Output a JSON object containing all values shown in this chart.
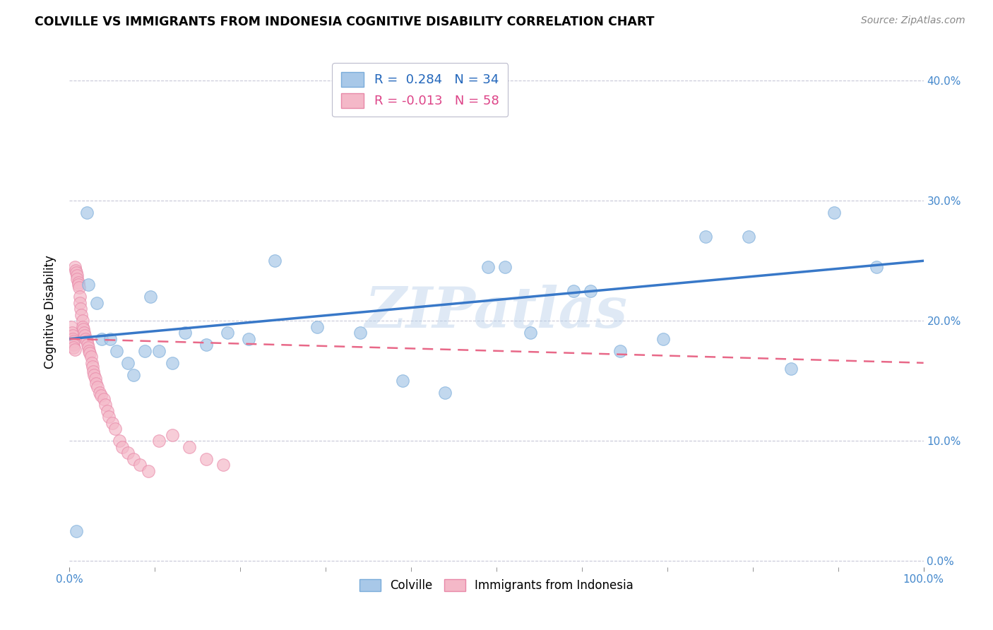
{
  "title": "COLVILLE VS IMMIGRANTS FROM INDONESIA COGNITIVE DISABILITY CORRELATION CHART",
  "source": "Source: ZipAtlas.com",
  "xlabel_label": "Colville",
  "xlabel_label2": "Immigrants from Indonesia",
  "ylabel": "Cognitive Disability",
  "watermark": "ZIPatlas",
  "colville_R": 0.284,
  "colville_N": 34,
  "indonesia_R": -0.013,
  "indonesia_N": 58,
  "colville_color": "#a8c8e8",
  "colville_edge_color": "#7aacda",
  "indonesia_color": "#f4b8c8",
  "indonesia_edge_color": "#e888a8",
  "colville_line_color": "#3878c8",
  "indonesia_line_color": "#e86888",
  "background_color": "#ffffff",
  "grid_color": "#c8c8d8",
  "xlim": [
    0,
    1
  ],
  "ylim": [
    -0.005,
    0.42
  ],
  "xtick_positions": [
    0.0,
    1.0
  ],
  "xtick_labels": [
    "0.0%",
    "100.0%"
  ],
  "ytick_positions": [
    0.0,
    0.1,
    0.2,
    0.3,
    0.4
  ],
  "ytick_labels": [
    "0.0%",
    "10.0%",
    "20.0%",
    "30.0%",
    "40.0%"
  ],
  "colville_x": [
    0.008,
    0.02,
    0.022,
    0.032,
    0.038,
    0.048,
    0.055,
    0.068,
    0.075,
    0.088,
    0.095,
    0.105,
    0.12,
    0.135,
    0.16,
    0.185,
    0.21,
    0.24,
    0.29,
    0.34,
    0.39,
    0.44,
    0.49,
    0.51,
    0.54,
    0.59,
    0.61,
    0.645,
    0.695,
    0.745,
    0.795,
    0.845,
    0.895,
    0.945
  ],
  "colville_y": [
    0.025,
    0.29,
    0.23,
    0.215,
    0.185,
    0.185,
    0.175,
    0.165,
    0.155,
    0.175,
    0.22,
    0.175,
    0.165,
    0.19,
    0.18,
    0.19,
    0.185,
    0.25,
    0.195,
    0.19,
    0.15,
    0.14,
    0.245,
    0.245,
    0.19,
    0.225,
    0.225,
    0.175,
    0.185,
    0.27,
    0.27,
    0.16,
    0.29,
    0.245
  ],
  "indonesia_x": [
    0.002,
    0.003,
    0.004,
    0.004,
    0.005,
    0.005,
    0.005,
    0.006,
    0.006,
    0.007,
    0.008,
    0.009,
    0.009,
    0.01,
    0.01,
    0.011,
    0.012,
    0.012,
    0.013,
    0.014,
    0.015,
    0.015,
    0.016,
    0.017,
    0.018,
    0.019,
    0.02,
    0.021,
    0.022,
    0.023,
    0.024,
    0.025,
    0.026,
    0.027,
    0.028,
    0.029,
    0.03,
    0.031,
    0.033,
    0.035,
    0.037,
    0.04,
    0.042,
    0.044,
    0.046,
    0.05,
    0.053,
    0.058,
    0.062,
    0.068,
    0.075,
    0.082,
    0.092,
    0.105,
    0.12,
    0.14,
    0.16,
    0.18
  ],
  "indonesia_y": [
    0.195,
    0.19,
    0.188,
    0.185,
    0.183,
    0.18,
    0.178,
    0.176,
    0.245,
    0.242,
    0.24,
    0.238,
    0.235,
    0.232,
    0.23,
    0.228,
    0.22,
    0.215,
    0.21,
    0.205,
    0.2,
    0.195,
    0.193,
    0.19,
    0.188,
    0.185,
    0.183,
    0.18,
    0.178,
    0.175,
    0.173,
    0.17,
    0.165,
    0.162,
    0.158,
    0.155,
    0.152,
    0.148,
    0.145,
    0.14,
    0.138,
    0.135,
    0.13,
    0.125,
    0.12,
    0.115,
    0.11,
    0.1,
    0.095,
    0.09,
    0.085,
    0.08,
    0.075,
    0.1,
    0.105,
    0.095,
    0.085,
    0.08
  ]
}
